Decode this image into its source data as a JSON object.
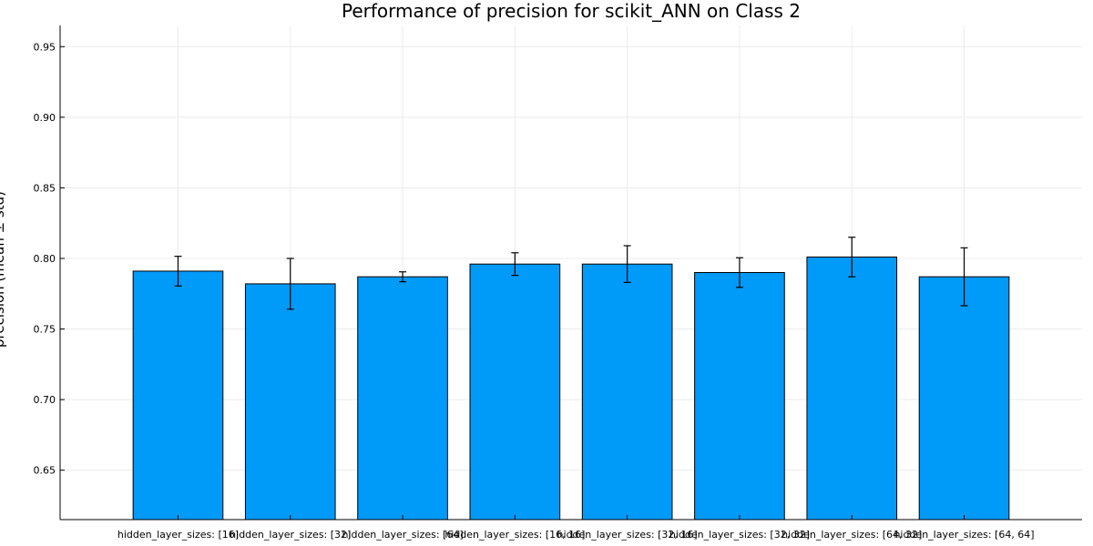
{
  "chart_data": {
    "type": "bar",
    "title": "Performance of precision for scikit_ANN on Class 2",
    "xlabel": "",
    "ylabel": "precision (mean ± std)",
    "categories": [
      "hidden_layer_sizes: [16]",
      "hidden_layer_sizes: [32]",
      "hidden_layer_sizes: [64]",
      "hidden_layer_sizes: [16, 16]",
      "hidden_layer_sizes: [32, 16]",
      "hidden_layer_sizes: [32, 32]",
      "hidden_layer_sizes: [64, 32]",
      "hidden_layer_sizes: [64, 64]"
    ],
    "values": [
      0.791,
      0.782,
      0.787,
      0.796,
      0.796,
      0.79,
      0.801,
      0.787
    ],
    "error": [
      0.0105,
      0.018,
      0.0035,
      0.008,
      0.013,
      0.0105,
      0.014,
      0.0205
    ],
    "ylim": [
      0.615,
      0.965
    ],
    "yticks": [
      0.65,
      0.7,
      0.75,
      0.8,
      0.85,
      0.9,
      0.95
    ],
    "ytick_labels": [
      "0.65",
      "0.70",
      "0.75",
      "0.80",
      "0.85",
      "0.90",
      "0.95"
    ],
    "grid": true,
    "legend": "none",
    "colors": {
      "bar": "#009af9",
      "bar_edge": "#000000",
      "error": "#000000",
      "grid": "#ececec"
    }
  }
}
